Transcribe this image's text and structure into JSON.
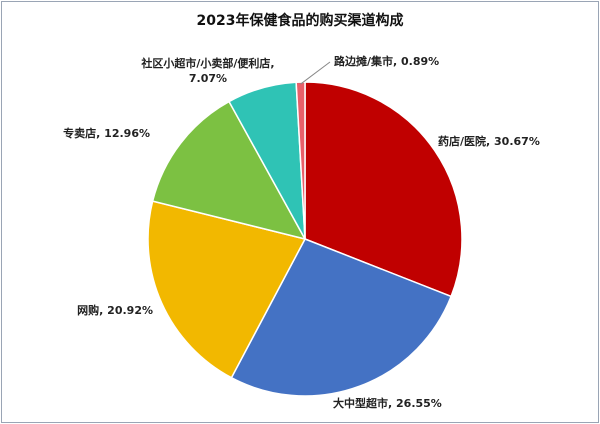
{
  "chart_data": {
    "type": "pie",
    "title": "2023年保健食品的购买渠道构成",
    "labels": [
      "药店/医院, 30.67%",
      "大中型超市, 26.55%",
      "网购, 20.92%",
      "专卖店, 12.96%",
      "社区小超市/小卖部/便利店, 7.07%",
      "路边摊/集市, 0.89%"
    ],
    "values": [
      30.67,
      26.55,
      20.92,
      12.96,
      7.07,
      0.89
    ],
    "colors": [
      "#c00000",
      "#4472c4",
      "#f2b800",
      "#7cc142",
      "#2fc3b5",
      "#e8606a"
    ]
  }
}
